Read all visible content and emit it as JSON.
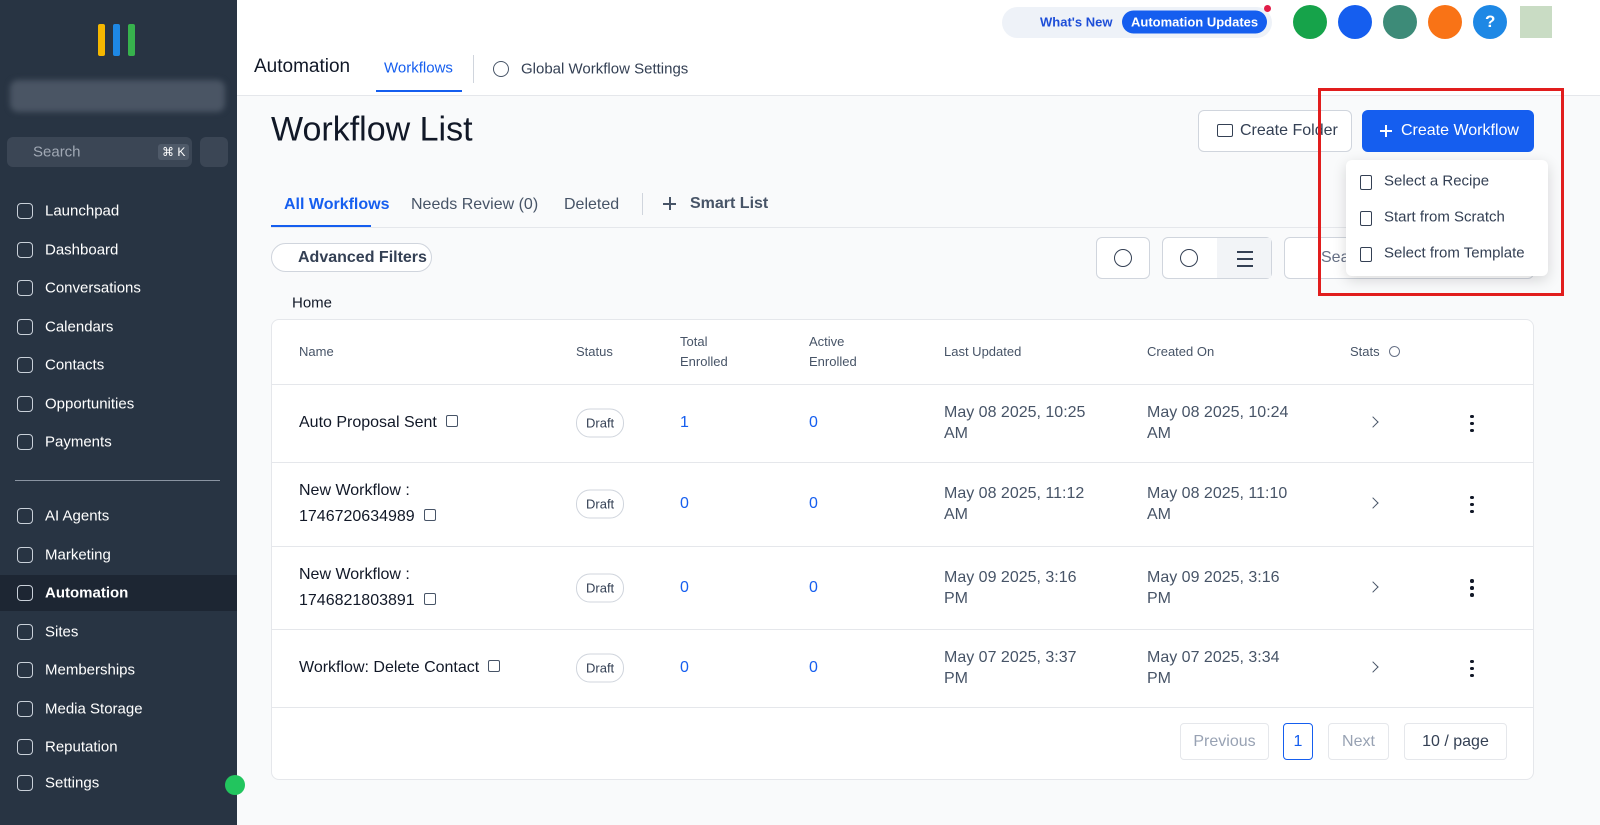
{
  "sidebar": {
    "search_placeholder": "Search",
    "shortcut": "⌘ K",
    "nav": [
      "Launchpad",
      "Dashboard",
      "Conversations",
      "Calendars",
      "Contacts",
      "Opportunities",
      "Payments"
    ],
    "nav2": [
      "AI Agents",
      "Marketing",
      "Automation",
      "Sites",
      "Memberships",
      "Media Storage",
      "Reputation"
    ],
    "active": 2,
    "settings": "Settings"
  },
  "topbar": {
    "whats_new": "What's New",
    "badge": "Automation Updates",
    "help": "?"
  },
  "header": {
    "section": "Automation",
    "tabs": [
      "Workflows",
      "Global Workflow Settings"
    ]
  },
  "page": {
    "title": "Workflow List",
    "create_folder": "Create Folder",
    "create_workflow": "Create Workflow",
    "menu": [
      "Select a Recipe",
      "Start from Scratch",
      "Select from Template"
    ],
    "filter_tabs": [
      "All Workflows",
      "Needs Review (0)",
      "Deleted"
    ],
    "smart_list": "Smart List",
    "advanced_filters": "Advanced Filters",
    "search_placeholder": "Search",
    "breadcrumb": "Home"
  },
  "table": {
    "columns": [
      "Name",
      "Status",
      "Total Enrolled",
      "Active Enrolled",
      "Last Updated",
      "Created On",
      "Stats"
    ],
    "rows": [
      [
        "Auto Proposal Sent",
        "Draft",
        1,
        0,
        "May 08 2025, 10:25 AM",
        "May 08 2025, 10:24 AM"
      ],
      [
        "New Workflow : 1746720634989",
        "Draft",
        0,
        0,
        "May 08 2025, 11:12 AM",
        "May 08 2025, 11:10 AM"
      ],
      [
        "New Workflow : 1746821803891",
        "Draft",
        0,
        0,
        "May 09 2025, 3:16 PM",
        "May 09 2025, 3:16 PM"
      ],
      [
        "Workflow: Delete Contact",
        "Draft",
        0,
        0,
        "May 07 2025, 3:37 PM",
        "May 07 2025, 3:34 PM"
      ]
    ]
  },
  "pagination": {
    "previous": "Previous",
    "page": 1,
    "next": "Next",
    "per_page": "10 / page"
  }
}
